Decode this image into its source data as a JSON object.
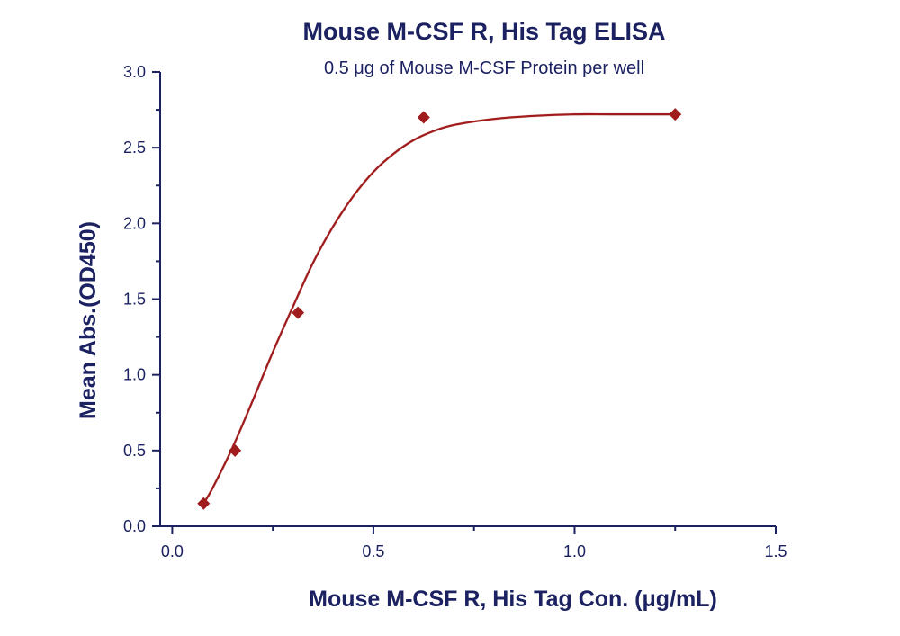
{
  "chart_data": {
    "type": "scatter",
    "title": "Mouse M-CSF R, His Tag ELISA",
    "subtitle": "0.5 μg of Mouse M-CSF Protein per well",
    "xlabel": "Mouse M-CSF R, His Tag Con. (μg/mL)",
    "ylabel": "Mean Abs.(OD450)",
    "xlim": [
      -0.03,
      1.5
    ],
    "ylim": [
      0.0,
      3.0
    ],
    "x_ticks": [
      0.0,
      0.5,
      1.0,
      1.5
    ],
    "x_tick_labels": [
      "0.0",
      "0.5",
      "1.0",
      "1.5"
    ],
    "y_ticks": [
      0.0,
      0.5,
      1.0,
      1.5,
      2.0,
      2.5,
      3.0
    ],
    "y_tick_labels": [
      "0.0",
      "0.5",
      "1.0",
      "1.5",
      "2.0",
      "2.5",
      "3.0"
    ],
    "grid": false,
    "series": [
      {
        "marker": "diamond",
        "color": "#a01c1c",
        "x": [
          0.078,
          0.156,
          0.3125,
          0.625,
          1.25
        ],
        "y": [
          0.15,
          0.5,
          1.41,
          2.7,
          2.72
        ]
      }
    ],
    "fit_curve": {
      "type": "sigmoid",
      "color": "#a01c1c",
      "x": [
        0.078,
        0.1,
        0.15,
        0.2,
        0.25,
        0.3,
        0.35,
        0.4,
        0.45,
        0.5,
        0.55,
        0.6,
        0.65,
        0.7,
        0.8,
        0.9,
        1.0,
        1.1,
        1.25
      ],
      "y": [
        0.15,
        0.25,
        0.52,
        0.83,
        1.15,
        1.45,
        1.74,
        1.98,
        2.18,
        2.34,
        2.46,
        2.55,
        2.61,
        2.65,
        2.69,
        2.71,
        2.72,
        2.72,
        2.72
      ]
    }
  }
}
